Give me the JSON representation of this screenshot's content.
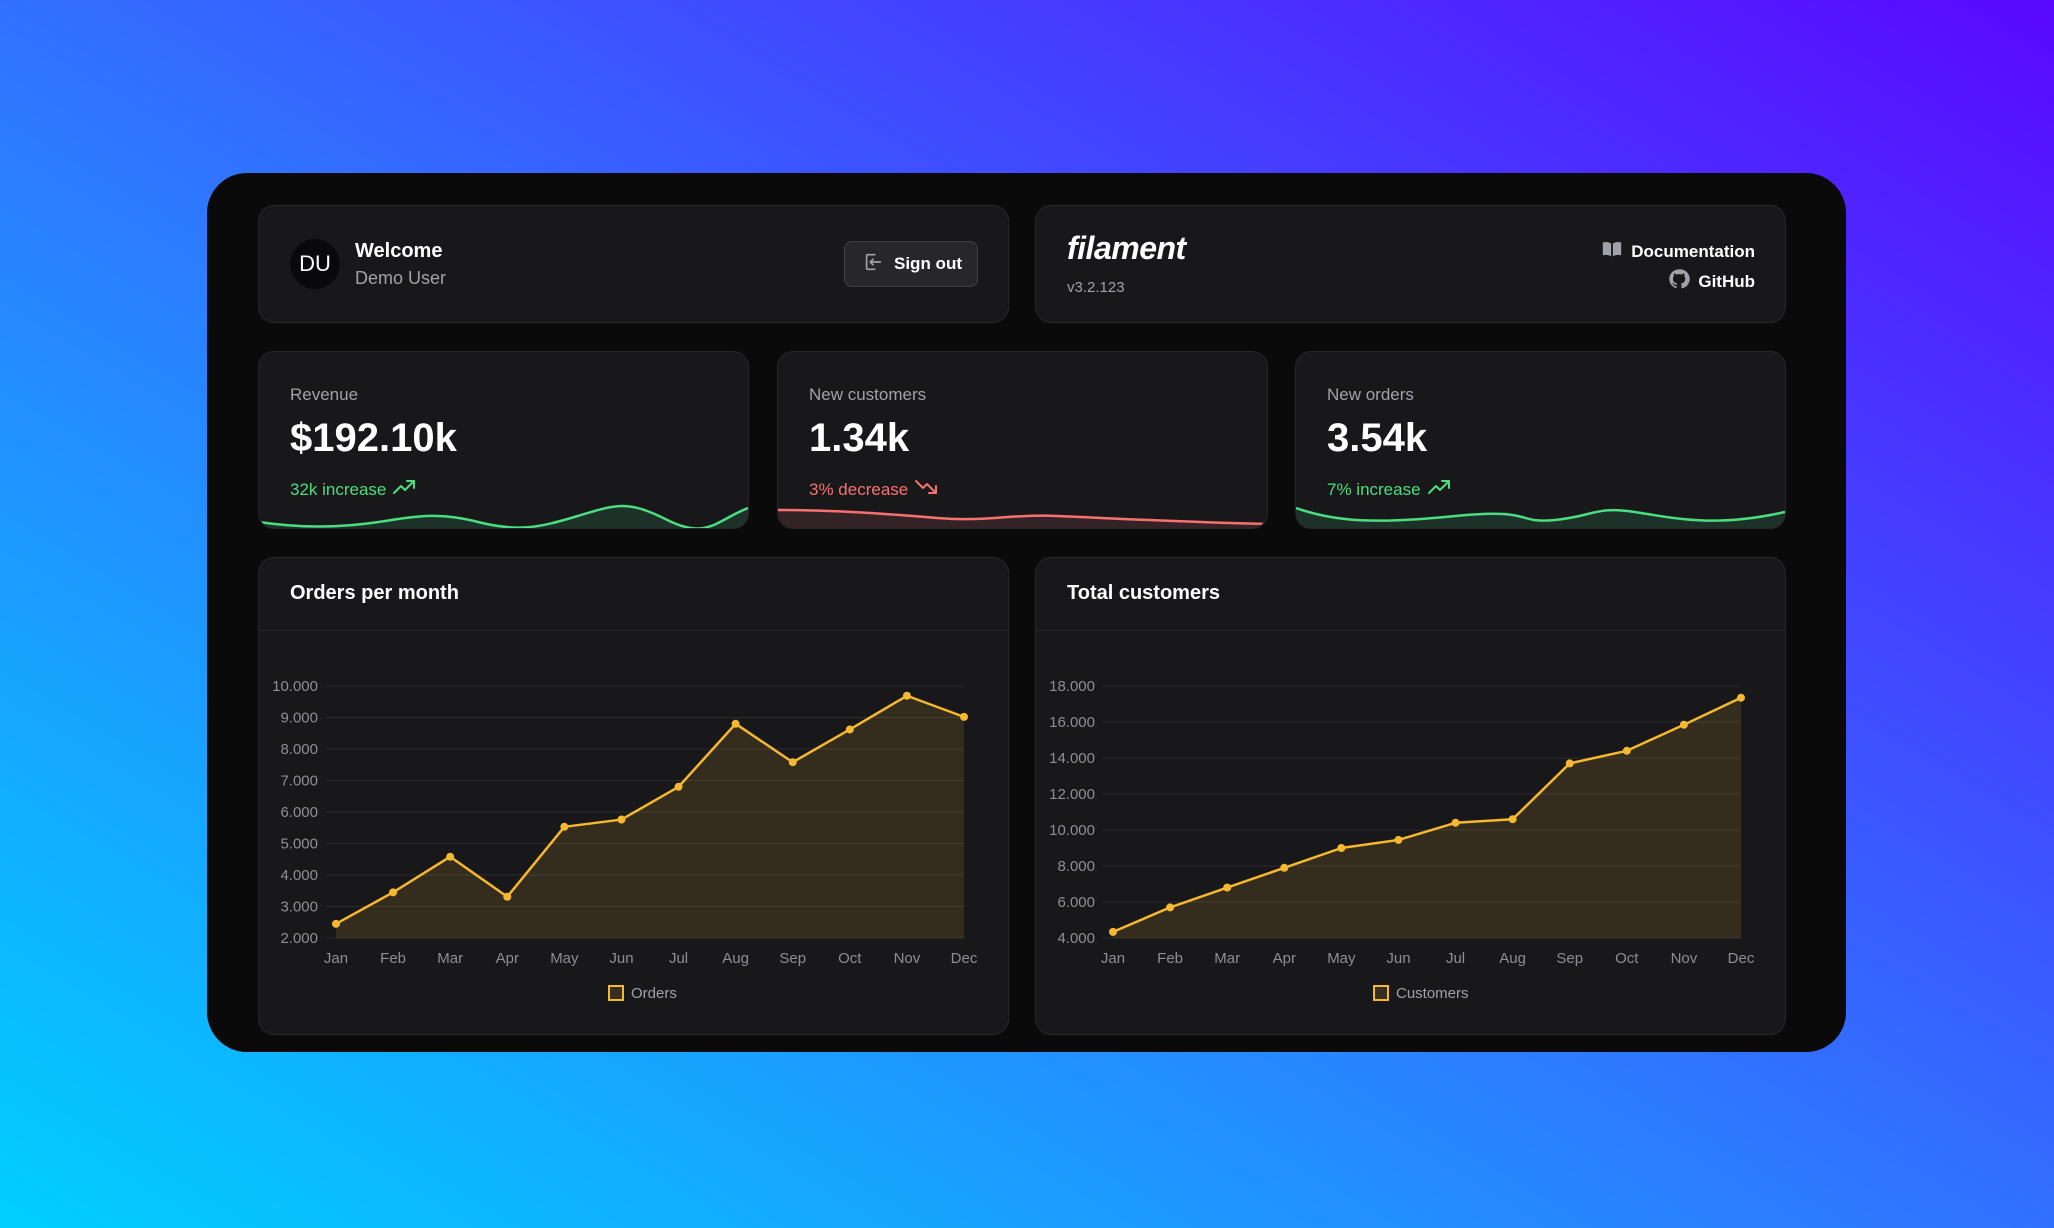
{
  "user": {
    "initials": "DU",
    "welcome": "Welcome",
    "name": "Demo User",
    "signout_label": "Sign out"
  },
  "brand": {
    "name": "filament",
    "version": "v3.2.123",
    "doc_label": "Documentation",
    "github_label": "GitHub"
  },
  "stats": [
    {
      "label": "Revenue",
      "value": "$192.10k",
      "trend": "32k increase",
      "direction": "up"
    },
    {
      "label": "New customers",
      "value": "1.34k",
      "trend": "3% decrease",
      "direction": "down"
    },
    {
      "label": "New orders",
      "value": "3.54k",
      "trend": "7% increase",
      "direction": "up"
    }
  ],
  "colors": {
    "accent": "#f5b82e",
    "up": "#4ade80",
    "down": "#f87171"
  },
  "chart_data": [
    {
      "type": "line",
      "title": "Orders per month",
      "categories": [
        "Jan",
        "Feb",
        "Mar",
        "Apr",
        "May",
        "Jun",
        "Jul",
        "Aug",
        "Sep",
        "Oct",
        "Nov",
        "Dec"
      ],
      "series": [
        {
          "name": "Orders",
          "values": [
            2450,
            3450,
            4580,
            3310,
            5530,
            5760,
            6800,
            8800,
            7580,
            8620,
            9690,
            9020
          ]
        }
      ],
      "ylim": [
        2000,
        10000
      ],
      "yticks": [
        "2.000",
        "3.000",
        "4.000",
        "5.000",
        "6.000",
        "7.000",
        "8.000",
        "9.000",
        "10.000"
      ],
      "grid": true,
      "legend": "bottom"
    },
    {
      "type": "line",
      "title": "Total customers",
      "categories": [
        "Jan",
        "Feb",
        "Mar",
        "Apr",
        "May",
        "Jun",
        "Jul",
        "Aug",
        "Sep",
        "Oct",
        "Nov",
        "Dec"
      ],
      "series": [
        {
          "name": "Customers",
          "values": [
            4340,
            5700,
            6800,
            7900,
            9000,
            9450,
            10400,
            10600,
            13700,
            14400,
            15850,
            17350
          ]
        }
      ],
      "ylim": [
        4000,
        18000
      ],
      "yticks": [
        "4.000",
        "6.000",
        "8.000",
        "10.000",
        "12.000",
        "14.000",
        "16.000",
        "18.000"
      ],
      "grid": true,
      "legend": "bottom"
    }
  ]
}
